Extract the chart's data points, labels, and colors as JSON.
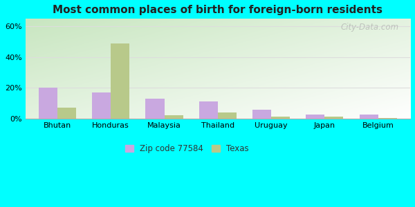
{
  "title": "Most common places of birth for foreign-born residents",
  "categories": [
    "Bhutan",
    "Honduras",
    "Malaysia",
    "Thailand",
    "Uruguay",
    "Japan",
    "Belgium"
  ],
  "zip_values": [
    20,
    17,
    13,
    11,
    6,
    2.5,
    2.5
  ],
  "tx_values": [
    7,
    49,
    2,
    4,
    1.5,
    1.5,
    0.5
  ],
  "zip_color": "#c9a8e0",
  "tx_color": "#b8c98a",
  "ylim": [
    0,
    65
  ],
  "yticks": [
    0,
    20,
    40,
    60
  ],
  "ytick_labels": [
    "0%",
    "20%",
    "40%",
    "60%"
  ],
  "legend_zip": "Zip code 77584",
  "legend_tx": "Texas",
  "bar_width": 0.35,
  "outer_bg": "#00ffff",
  "watermark": "City-Data.com",
  "grid_color": "#dddddd"
}
